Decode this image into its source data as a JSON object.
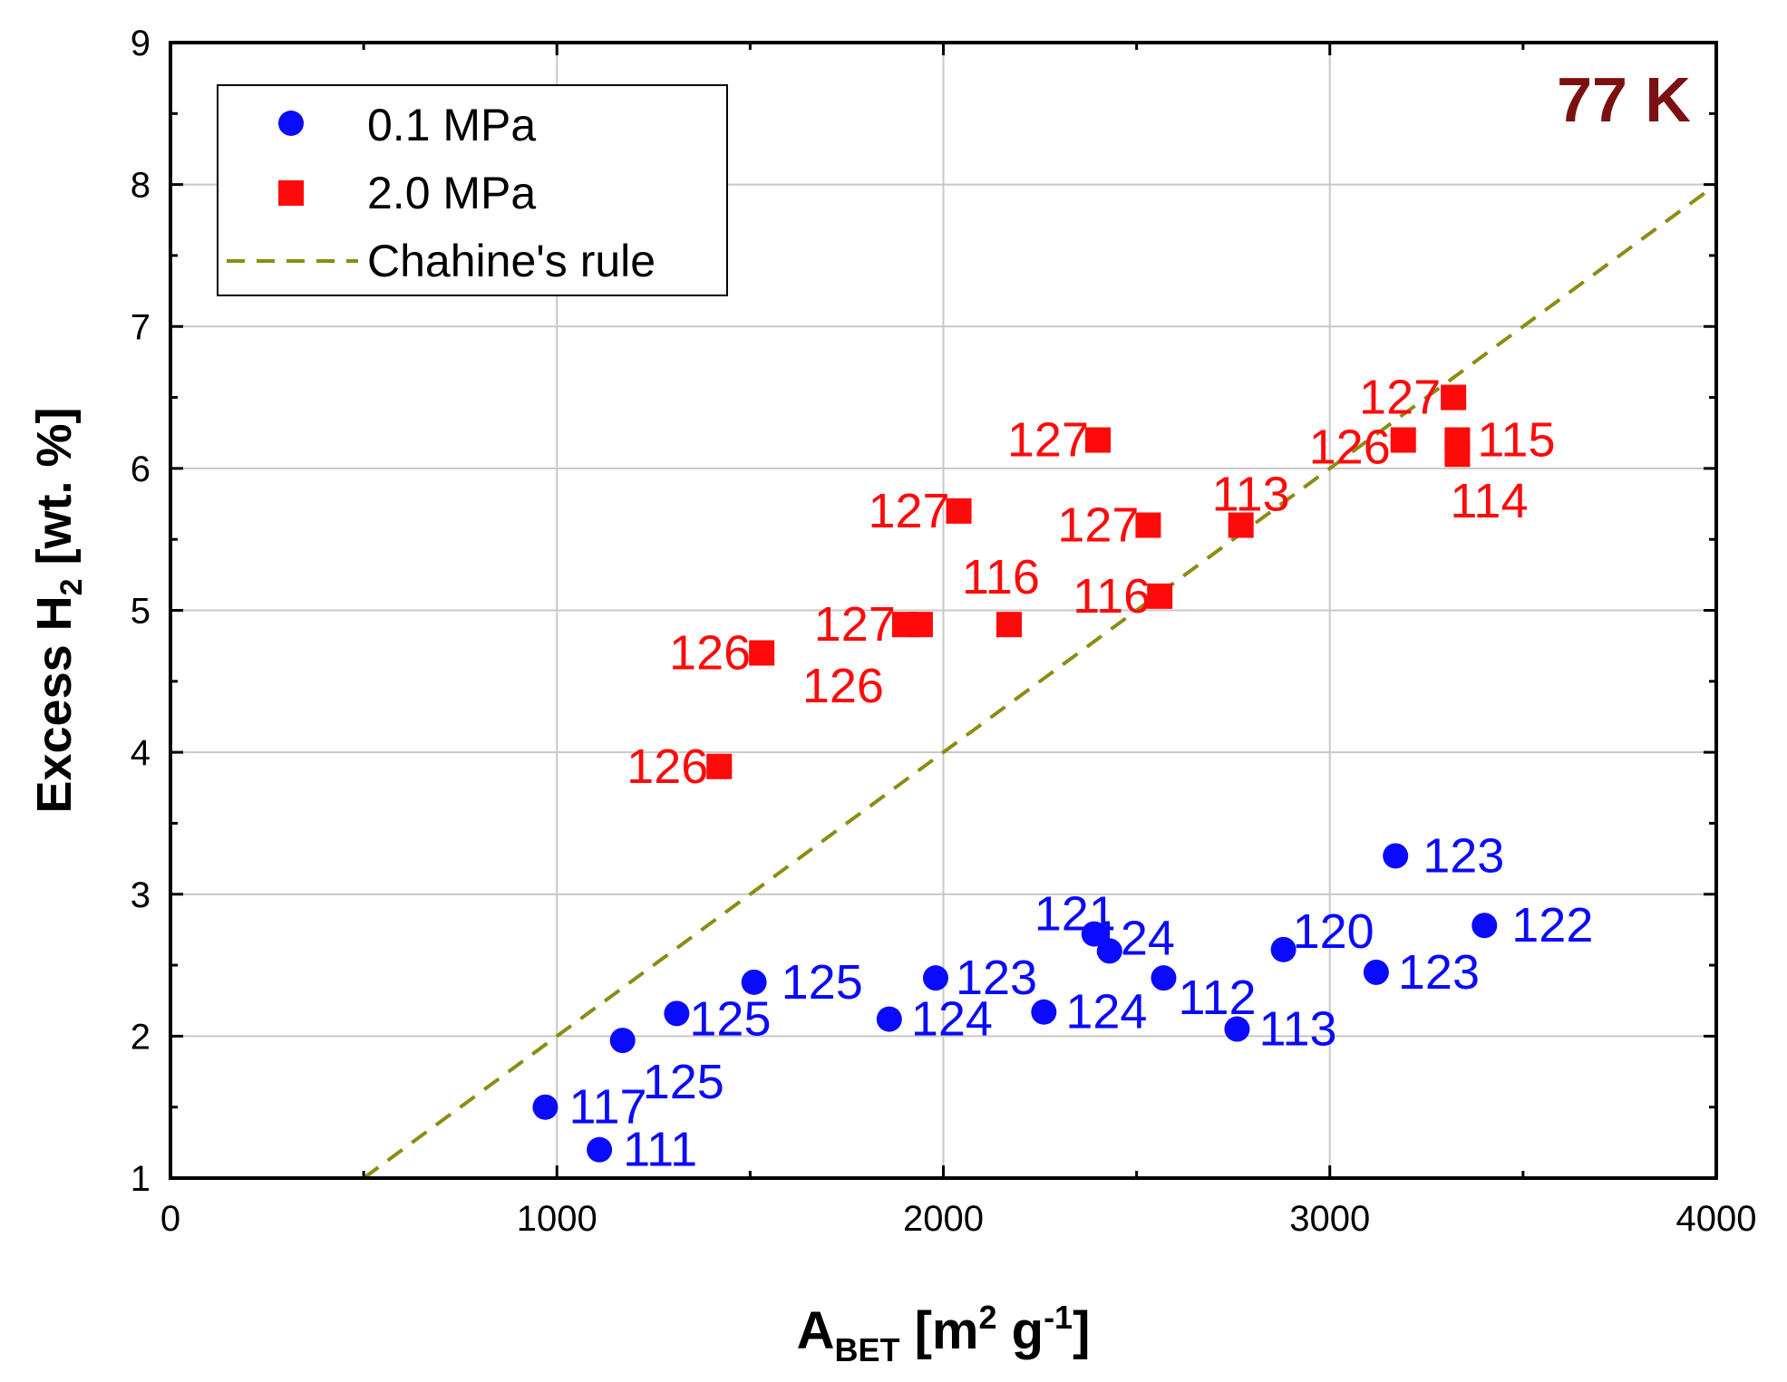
{
  "chart_data": {
    "type": "scatter",
    "xlabel_main": "A",
    "xlabel_sub": "BET",
    "xlabel_units_open": " [m",
    "xlabel_sup1": "2",
    "xlabel_units_mid": " g",
    "xlabel_sup2": "-1",
    "xlabel_units_close": "]",
    "ylabel_main": "Excess H",
    "ylabel_sub": "2",
    "ylabel_units": " [wt. %]",
    "xlim": [
      0,
      4000
    ],
    "ylim": [
      1,
      9
    ],
    "xticks": [
      0,
      1000,
      2000,
      3000,
      4000
    ],
    "yticks": [
      1,
      2,
      3,
      4,
      5,
      6,
      7,
      8,
      9
    ],
    "grid": true,
    "annotation": "77 K",
    "annotation_color": "#7b1010",
    "legend_position": "top-left",
    "series": [
      {
        "name": "0.1 MPa",
        "marker": "circle",
        "color": "#0a0aff",
        "points": [
          {
            "x": 970,
            "y": 1.5,
            "label": "117"
          },
          {
            "x": 1110,
            "y": 1.2,
            "label": "111"
          },
          {
            "x": 1170,
            "y": 1.97,
            "label": "125"
          },
          {
            "x": 1310,
            "y": 2.16,
            "label": "125"
          },
          {
            "x": 1510,
            "y": 2.38,
            "label": "125"
          },
          {
            "x": 1860,
            "y": 2.12,
            "label": "124"
          },
          {
            "x": 1980,
            "y": 2.41,
            "label": "123"
          },
          {
            "x": 2260,
            "y": 2.17,
            "label": "124"
          },
          {
            "x": 2390,
            "y": 2.72,
            "label": "121"
          },
          {
            "x": 2430,
            "y": 2.6,
            "label": "124"
          },
          {
            "x": 2570,
            "y": 2.41,
            "label": "112"
          },
          {
            "x": 2760,
            "y": 2.05,
            "label": "113"
          },
          {
            "x": 2880,
            "y": 2.61,
            "label": "120"
          },
          {
            "x": 3120,
            "y": 2.45,
            "label": "123"
          },
          {
            "x": 3170,
            "y": 3.27,
            "label": "123"
          },
          {
            "x": 3400,
            "y": 2.78,
            "label": "122"
          }
        ]
      },
      {
        "name": "2.0 MPa",
        "marker": "square",
        "color": "#ff0a0a",
        "points": [
          {
            "x": 1420,
            "y": 3.9,
            "label": "126"
          },
          {
            "x": 1530,
            "y": 4.7,
            "label": "126"
          },
          {
            "x": 1900,
            "y": 4.9,
            "label": "127"
          },
          {
            "x": 1940,
            "y": 4.9,
            "label": "126"
          },
          {
            "x": 2040,
            "y": 5.7,
            "label": "127"
          },
          {
            "x": 2170,
            "y": 4.9,
            "label": "116"
          },
          {
            "x": 2400,
            "y": 6.2,
            "label": "127"
          },
          {
            "x": 2530,
            "y": 5.6,
            "label": "127"
          },
          {
            "x": 2560,
            "y": 5.1,
            "label": "116"
          },
          {
            "x": 2770,
            "y": 5.6,
            "label": "113"
          },
          {
            "x": 3190,
            "y": 6.2,
            "label": "126"
          },
          {
            "x": 3320,
            "y": 6.5,
            "label": "127"
          },
          {
            "x": 3330,
            "y": 6.2,
            "label": "115"
          },
          {
            "x": 3330,
            "y": 6.1,
            "label": "114"
          }
        ]
      },
      {
        "name": "Chahine's rule",
        "marker": "dashed-line",
        "color": "#8c8c14",
        "x": [
          500,
          4000
        ],
        "y": [
          1.0,
          8.0
        ]
      }
    ]
  }
}
